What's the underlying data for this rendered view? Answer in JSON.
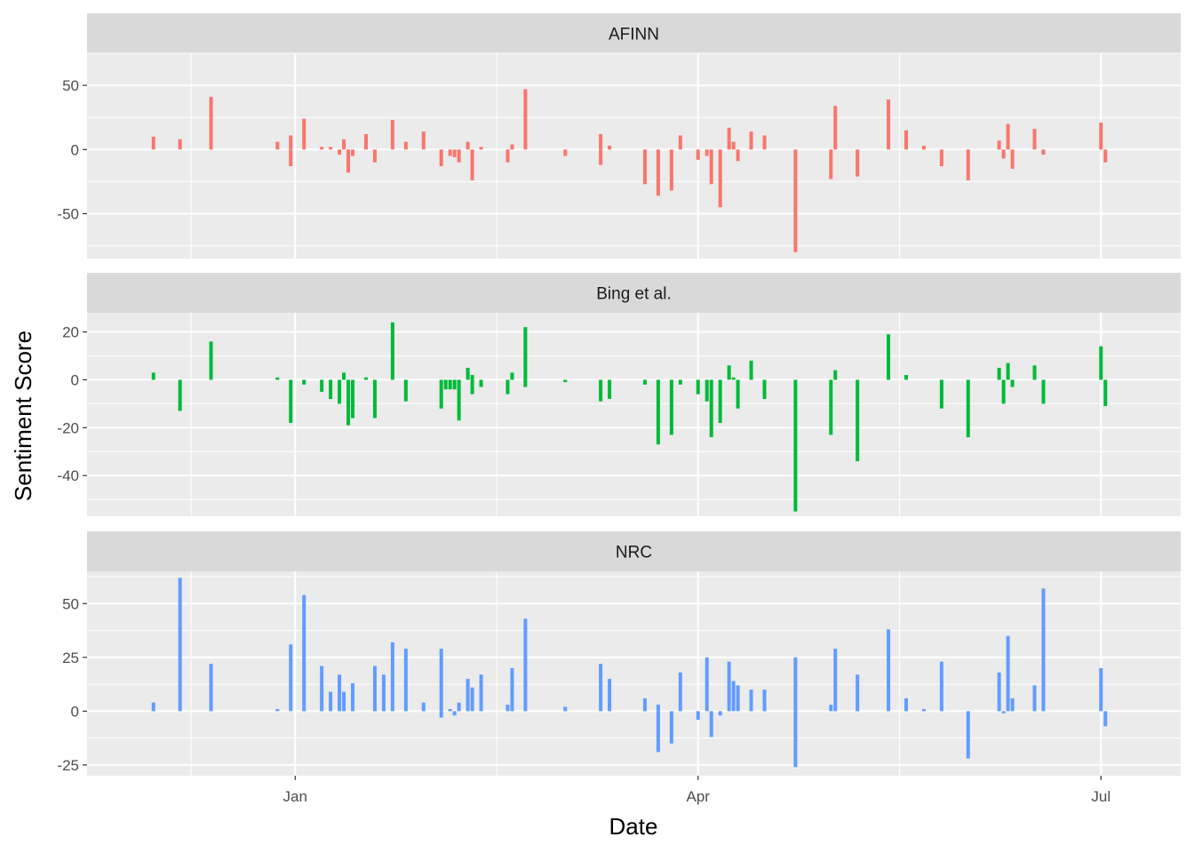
{
  "chart_data": {
    "type": "bar",
    "xlabel": "Date",
    "ylabel": "Sentiment Score",
    "x_tick_labels": [
      "Jan",
      "Apr",
      "Jul"
    ],
    "x_ticks": [
      "2020-01-01",
      "2020-04-01",
      "2020-07-01"
    ],
    "xlim": [
      "2019-11-15",
      "2020-07-19"
    ],
    "grid": true,
    "legend": "none",
    "facets": [
      {
        "name": "AFINN",
        "color": "#f8766d",
        "ylim": [
          -85,
          75
        ],
        "y_ticks": [
          50,
          0,
          -50
        ],
        "bars": [
          {
            "x": "2019-11-30",
            "value": 10
          },
          {
            "x": "2019-12-06",
            "value": 8
          },
          {
            "x": "2019-12-13",
            "value": 41
          },
          {
            "x": "2019-12-28",
            "value": 6
          },
          {
            "x": "2019-12-31",
            "value": -13
          },
          {
            "x": "2019-12-31",
            "value": 11
          },
          {
            "x": "2020-01-03",
            "value": 24
          },
          {
            "x": "2020-01-07",
            "value": 2
          },
          {
            "x": "2020-01-09",
            "value": 2
          },
          {
            "x": "2020-01-11",
            "value": -4
          },
          {
            "x": "2020-01-12",
            "value": 8
          },
          {
            "x": "2020-01-13",
            "value": -18
          },
          {
            "x": "2020-01-14",
            "value": -5
          },
          {
            "x": "2020-01-17",
            "value": 12
          },
          {
            "x": "2020-01-19",
            "value": -10
          },
          {
            "x": "2020-01-23",
            "value": 23
          },
          {
            "x": "2020-01-26",
            "value": 6
          },
          {
            "x": "2020-01-30",
            "value": 14
          },
          {
            "x": "2020-02-03",
            "value": -13
          },
          {
            "x": "2020-02-05",
            "value": -5
          },
          {
            "x": "2020-02-06",
            "value": -6
          },
          {
            "x": "2020-02-07",
            "value": -10
          },
          {
            "x": "2020-02-09",
            "value": 6
          },
          {
            "x": "2020-02-10",
            "value": -24
          },
          {
            "x": "2020-02-12",
            "value": 2
          },
          {
            "x": "2020-02-18",
            "value": -10
          },
          {
            "x": "2020-02-19",
            "value": 4
          },
          {
            "x": "2020-02-22",
            "value": 47
          },
          {
            "x": "2020-03-02",
            "value": -5
          },
          {
            "x": "2020-03-10",
            "value": -12
          },
          {
            "x": "2020-03-10",
            "value": 12
          },
          {
            "x": "2020-03-12",
            "value": 3
          },
          {
            "x": "2020-03-20",
            "value": -27
          },
          {
            "x": "2020-03-23",
            "value": -36
          },
          {
            "x": "2020-03-26",
            "value": -32
          },
          {
            "x": "2020-03-28",
            "value": 11
          },
          {
            "x": "2020-04-01",
            "value": -8
          },
          {
            "x": "2020-04-03",
            "value": -5
          },
          {
            "x": "2020-04-04",
            "value": -27
          },
          {
            "x": "2020-04-06",
            "value": -45
          },
          {
            "x": "2020-04-08",
            "value": 17
          },
          {
            "x": "2020-04-09",
            "value": 6
          },
          {
            "x": "2020-04-10",
            "value": -9
          },
          {
            "x": "2020-04-13",
            "value": 14
          },
          {
            "x": "2020-04-16",
            "value": 11
          },
          {
            "x": "2020-04-23",
            "value": -80
          },
          {
            "x": "2020-05-01",
            "value": -23
          },
          {
            "x": "2020-05-02",
            "value": 34
          },
          {
            "x": "2020-05-07",
            "value": -21
          },
          {
            "x": "2020-05-14",
            "value": 39
          },
          {
            "x": "2020-05-18",
            "value": 15
          },
          {
            "x": "2020-05-22",
            "value": 3
          },
          {
            "x": "2020-05-26",
            "value": -13
          },
          {
            "x": "2020-06-01",
            "value": -24
          },
          {
            "x": "2020-06-08",
            "value": 7
          },
          {
            "x": "2020-06-09",
            "value": -7
          },
          {
            "x": "2020-06-10",
            "value": 20
          },
          {
            "x": "2020-06-11",
            "value": -15
          },
          {
            "x": "2020-06-16",
            "value": 16
          },
          {
            "x": "2020-06-18",
            "value": -4
          },
          {
            "x": "2020-07-01",
            "value": 21
          },
          {
            "x": "2020-07-02",
            "value": -10
          }
        ]
      },
      {
        "name": "Bing et al.",
        "color": "#00ba38",
        "ylim": [
          -57,
          28
        ],
        "y_ticks": [
          20,
          0,
          -20,
          -40
        ],
        "bars": [
          {
            "x": "2019-11-30",
            "value": 3
          },
          {
            "x": "2019-12-06",
            "value": -13
          },
          {
            "x": "2019-12-13",
            "value": 16
          },
          {
            "x": "2019-12-28",
            "value": 1
          },
          {
            "x": "2019-12-31",
            "value": -18
          },
          {
            "x": "2020-01-03",
            "value": -2
          },
          {
            "x": "2020-01-07",
            "value": -5
          },
          {
            "x": "2020-01-09",
            "value": -8
          },
          {
            "x": "2020-01-11",
            "value": -10
          },
          {
            "x": "2020-01-12",
            "value": 3
          },
          {
            "x": "2020-01-13",
            "value": -19
          },
          {
            "x": "2020-01-14",
            "value": -16
          },
          {
            "x": "2020-01-17",
            "value": 1
          },
          {
            "x": "2020-01-19",
            "value": -16
          },
          {
            "x": "2020-01-23",
            "value": 24
          },
          {
            "x": "2020-01-26",
            "value": -9
          },
          {
            "x": "2020-02-03",
            "value": -12
          },
          {
            "x": "2020-02-04",
            "value": -4
          },
          {
            "x": "2020-02-05",
            "value": -4
          },
          {
            "x": "2020-02-06",
            "value": -4
          },
          {
            "x": "2020-02-07",
            "value": -17
          },
          {
            "x": "2020-02-09",
            "value": 5
          },
          {
            "x": "2020-02-10",
            "value": -6
          },
          {
            "x": "2020-02-10",
            "value": 2
          },
          {
            "x": "2020-02-12",
            "value": -3
          },
          {
            "x": "2020-02-18",
            "value": -6
          },
          {
            "x": "2020-02-19",
            "value": 3
          },
          {
            "x": "2020-02-22",
            "value": -3
          },
          {
            "x": "2020-02-22",
            "value": 22
          },
          {
            "x": "2020-03-02",
            "value": -1
          },
          {
            "x": "2020-03-10",
            "value": -9
          },
          {
            "x": "2020-03-12",
            "value": -8
          },
          {
            "x": "2020-03-20",
            "value": -2
          },
          {
            "x": "2020-03-23",
            "value": -27
          },
          {
            "x": "2020-03-26",
            "value": -23
          },
          {
            "x": "2020-03-28",
            "value": -2
          },
          {
            "x": "2020-04-01",
            "value": -6
          },
          {
            "x": "2020-04-03",
            "value": -9
          },
          {
            "x": "2020-04-04",
            "value": -24
          },
          {
            "x": "2020-04-06",
            "value": -18
          },
          {
            "x": "2020-04-08",
            "value": 6
          },
          {
            "x": "2020-04-09",
            "value": 1
          },
          {
            "x": "2020-04-10",
            "value": -12
          },
          {
            "x": "2020-04-13",
            "value": 8
          },
          {
            "x": "2020-04-16",
            "value": -8
          },
          {
            "x": "2020-04-23",
            "value": -55
          },
          {
            "x": "2020-05-01",
            "value": -23
          },
          {
            "x": "2020-05-02",
            "value": 4
          },
          {
            "x": "2020-05-07",
            "value": -34
          },
          {
            "x": "2020-05-14",
            "value": 19
          },
          {
            "x": "2020-05-18",
            "value": 2
          },
          {
            "x": "2020-05-26",
            "value": -12
          },
          {
            "x": "2020-06-01",
            "value": -24
          },
          {
            "x": "2020-06-08",
            "value": 5
          },
          {
            "x": "2020-06-09",
            "value": -10
          },
          {
            "x": "2020-06-10",
            "value": 7
          },
          {
            "x": "2020-06-11",
            "value": -3
          },
          {
            "x": "2020-06-16",
            "value": 6
          },
          {
            "x": "2020-06-18",
            "value": -10
          },
          {
            "x": "2020-07-01",
            "value": 14
          },
          {
            "x": "2020-07-02",
            "value": -11
          }
        ]
      },
      {
        "name": "NRC",
        "color": "#619cff",
        "ylim": [
          -30,
          65
        ],
        "y_ticks": [
          50,
          25,
          0,
          -25
        ],
        "bars": [
          {
            "x": "2019-11-30",
            "value": 4
          },
          {
            "x": "2019-12-06",
            "value": 62
          },
          {
            "x": "2019-12-13",
            "value": 22
          },
          {
            "x": "2019-12-28",
            "value": 1
          },
          {
            "x": "2019-12-31",
            "value": 31
          },
          {
            "x": "2020-01-03",
            "value": 54
          },
          {
            "x": "2020-01-07",
            "value": 21
          },
          {
            "x": "2020-01-09",
            "value": 9
          },
          {
            "x": "2020-01-11",
            "value": 17
          },
          {
            "x": "2020-01-12",
            "value": 9
          },
          {
            "x": "2020-01-14",
            "value": 13
          },
          {
            "x": "2020-01-19",
            "value": 21
          },
          {
            "x": "2020-01-21",
            "value": 17
          },
          {
            "x": "2020-01-23",
            "value": 32
          },
          {
            "x": "2020-01-26",
            "value": 29
          },
          {
            "x": "2020-01-30",
            "value": 4
          },
          {
            "x": "2020-02-03",
            "value": 29
          },
          {
            "x": "2020-02-03",
            "value": -3
          },
          {
            "x": "2020-02-05",
            "value": 1
          },
          {
            "x": "2020-02-06",
            "value": -2
          },
          {
            "x": "2020-02-07",
            "value": 4
          },
          {
            "x": "2020-02-09",
            "value": 15
          },
          {
            "x": "2020-02-10",
            "value": 11
          },
          {
            "x": "2020-02-12",
            "value": 17
          },
          {
            "x": "2020-02-18",
            "value": 3
          },
          {
            "x": "2020-02-19",
            "value": 20
          },
          {
            "x": "2020-02-22",
            "value": 43
          },
          {
            "x": "2020-03-02",
            "value": 2
          },
          {
            "x": "2020-03-10",
            "value": 22
          },
          {
            "x": "2020-03-12",
            "value": 15
          },
          {
            "x": "2020-03-20",
            "value": 6
          },
          {
            "x": "2020-03-23",
            "value": -19
          },
          {
            "x": "2020-03-23",
            "value": 3
          },
          {
            "x": "2020-03-26",
            "value": -15
          },
          {
            "x": "2020-03-28",
            "value": 18
          },
          {
            "x": "2020-04-01",
            "value": -4
          },
          {
            "x": "2020-04-03",
            "value": 25
          },
          {
            "x": "2020-04-04",
            "value": -12
          },
          {
            "x": "2020-04-06",
            "value": -2
          },
          {
            "x": "2020-04-08",
            "value": 23
          },
          {
            "x": "2020-04-09",
            "value": 14
          },
          {
            "x": "2020-04-10",
            "value": 12
          },
          {
            "x": "2020-04-13",
            "value": 10
          },
          {
            "x": "2020-04-16",
            "value": 10
          },
          {
            "x": "2020-04-23",
            "value": 25
          },
          {
            "x": "2020-04-23",
            "value": -26
          },
          {
            "x": "2020-05-01",
            "value": 3
          },
          {
            "x": "2020-05-02",
            "value": 29
          },
          {
            "x": "2020-05-07",
            "value": 17
          },
          {
            "x": "2020-05-14",
            "value": 38
          },
          {
            "x": "2020-05-18",
            "value": 6
          },
          {
            "x": "2020-05-22",
            "value": 1
          },
          {
            "x": "2020-05-26",
            "value": 23
          },
          {
            "x": "2020-06-01",
            "value": -22
          },
          {
            "x": "2020-06-08",
            "value": 18
          },
          {
            "x": "2020-06-09",
            "value": -1
          },
          {
            "x": "2020-06-10",
            "value": 35
          },
          {
            "x": "2020-06-11",
            "value": 6
          },
          {
            "x": "2020-06-16",
            "value": 12
          },
          {
            "x": "2020-06-18",
            "value": 57
          },
          {
            "x": "2020-07-01",
            "value": 20
          },
          {
            "x": "2020-07-02",
            "value": -7
          }
        ]
      }
    ]
  }
}
